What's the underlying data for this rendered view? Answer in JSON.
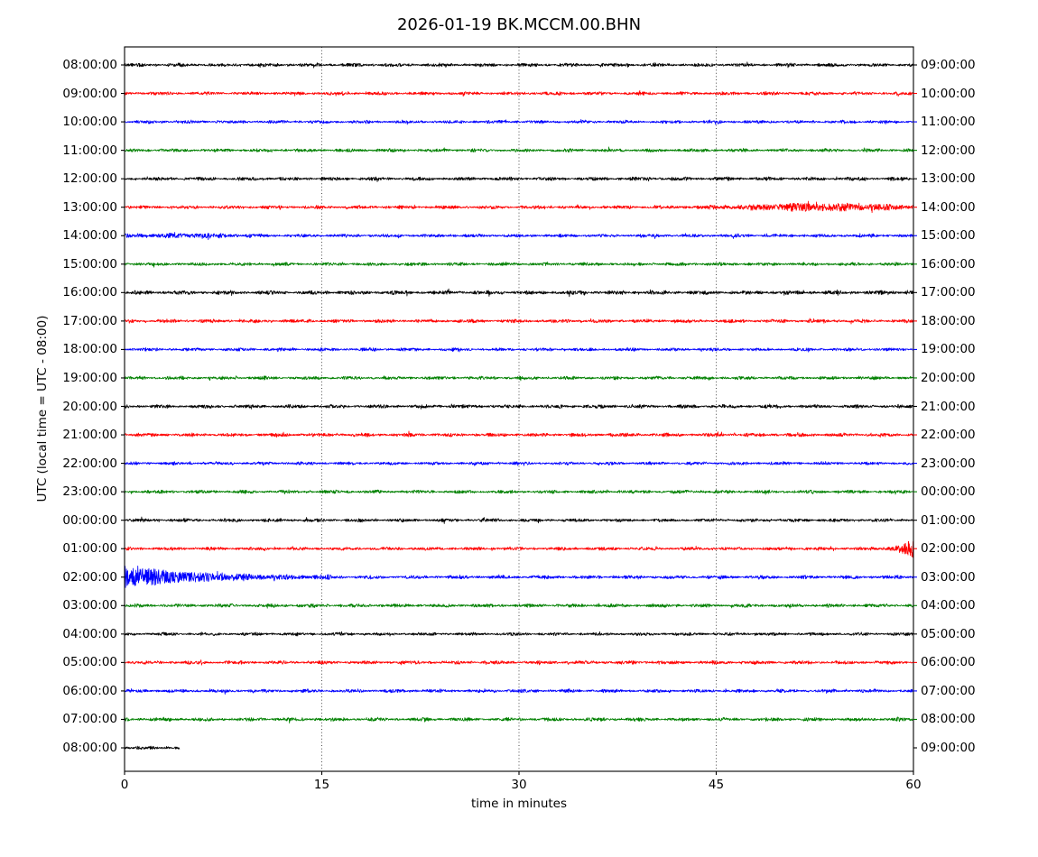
{
  "chart_data": {
    "type": "seismogram_dayplot",
    "title": "2026-01-19 BK.MCCM.00.BHN",
    "date": "2026-01-19",
    "station_id": "BK.MCCM.00.BHN",
    "xlabel": "time in minutes",
    "ylabel": "UTC (local time = UTC - 08:00)",
    "x_range": [
      0,
      60
    ],
    "x_ticks": [
      0,
      15,
      30,
      45,
      60
    ],
    "x_tick_labels": [
      "0",
      "15",
      "30",
      "45",
      "60"
    ],
    "grid": {
      "vertical_dotted_at": [
        15,
        30,
        45
      ],
      "horizontal": false
    },
    "legend": "none",
    "minutes_per_row": 60,
    "colors_cycle": [
      "#000000",
      "#ff0000",
      "#0000ff",
      "#008000"
    ],
    "frame_color": "#000000",
    "background_color": "#ffffff",
    "rows": [
      {
        "left_label": "08:00:00",
        "right_label": "09:00:00",
        "color": "#000000",
        "base_amp": 1.7,
        "span": [
          0,
          60
        ],
        "events": []
      },
      {
        "left_label": "09:00:00",
        "right_label": "10:00:00",
        "color": "#ff0000",
        "base_amp": 1.7,
        "span": [
          0,
          60
        ],
        "events": []
      },
      {
        "left_label": "10:00:00",
        "right_label": "11:00:00",
        "color": "#0000ff",
        "base_amp": 1.6,
        "span": [
          0,
          60
        ],
        "events": []
      },
      {
        "left_label": "11:00:00",
        "right_label": "12:00:00",
        "color": "#008000",
        "base_amp": 1.7,
        "span": [
          0,
          60
        ],
        "events": []
      },
      {
        "left_label": "12:00:00",
        "right_label": "13:00:00",
        "color": "#000000",
        "base_amp": 1.8,
        "span": [
          0,
          60
        ],
        "events": []
      },
      {
        "left_label": "13:00:00",
        "right_label": "14:00:00",
        "color": "#ff0000",
        "base_amp": 1.7,
        "span": [
          0,
          60
        ],
        "events": [
          {
            "type": "spindle",
            "start": 45,
            "peak": 53,
            "end": 60,
            "amp": 3.0
          }
        ]
      },
      {
        "left_label": "14:00:00",
        "right_label": "15:00:00",
        "color": "#0000ff",
        "base_amp": 1.7,
        "span": [
          0,
          60
        ],
        "events": [
          {
            "type": "spindle",
            "start": 1.5,
            "peak": 5,
            "end": 11,
            "amp": 1.2
          }
        ]
      },
      {
        "left_label": "15:00:00",
        "right_label": "16:00:00",
        "color": "#008000",
        "base_amp": 1.7,
        "span": [
          0,
          60
        ],
        "events": []
      },
      {
        "left_label": "16:00:00",
        "right_label": "17:00:00",
        "color": "#000000",
        "base_amp": 2.0,
        "span": [
          0,
          60
        ],
        "events": []
      },
      {
        "left_label": "17:00:00",
        "right_label": "18:00:00",
        "color": "#ff0000",
        "base_amp": 1.8,
        "span": [
          0,
          60
        ],
        "events": []
      },
      {
        "left_label": "18:00:00",
        "right_label": "19:00:00",
        "color": "#0000ff",
        "base_amp": 1.6,
        "span": [
          0,
          60
        ],
        "events": []
      },
      {
        "left_label": "19:00:00",
        "right_label": "20:00:00",
        "color": "#008000",
        "base_amp": 1.7,
        "span": [
          0,
          60
        ],
        "events": []
      },
      {
        "left_label": "20:00:00",
        "right_label": "21:00:00",
        "color": "#000000",
        "base_amp": 1.8,
        "span": [
          0,
          60
        ],
        "events": []
      },
      {
        "left_label": "21:00:00",
        "right_label": "22:00:00",
        "color": "#ff0000",
        "base_amp": 1.8,
        "span": [
          0,
          60
        ],
        "events": []
      },
      {
        "left_label": "22:00:00",
        "right_label": "23:00:00",
        "color": "#0000ff",
        "base_amp": 1.6,
        "span": [
          0,
          60
        ],
        "events": []
      },
      {
        "left_label": "23:00:00",
        "right_label": "00:00:00",
        "color": "#008000",
        "base_amp": 1.7,
        "span": [
          0,
          60
        ],
        "events": []
      },
      {
        "left_label": "00:00:00",
        "right_label": "01:00:00",
        "color": "#000000",
        "base_amp": 1.7,
        "span": [
          0,
          60
        ],
        "events": []
      },
      {
        "left_label": "01:00:00",
        "right_label": "02:00:00",
        "color": "#ff0000",
        "base_amp": 1.7,
        "span": [
          0,
          60
        ],
        "events": [
          {
            "type": "ramp",
            "start": 56.5,
            "end": 60,
            "amp": 9
          }
        ]
      },
      {
        "left_label": "02:00:00",
        "right_label": "03:00:00",
        "color": "#0000ff",
        "base_amp": 1.8,
        "span": [
          0,
          60
        ],
        "events": [
          {
            "type": "decay",
            "start": 0,
            "end": 16,
            "amp": 12,
            "tau": 5
          }
        ]
      },
      {
        "left_label": "03:00:00",
        "right_label": "04:00:00",
        "color": "#008000",
        "base_amp": 1.8,
        "span": [
          0,
          60
        ],
        "events": []
      },
      {
        "left_label": "04:00:00",
        "right_label": "05:00:00",
        "color": "#000000",
        "base_amp": 1.6,
        "span": [
          0,
          60
        ],
        "events": []
      },
      {
        "left_label": "05:00:00",
        "right_label": "06:00:00",
        "color": "#ff0000",
        "base_amp": 1.8,
        "span": [
          0,
          60
        ],
        "events": []
      },
      {
        "left_label": "06:00:00",
        "right_label": "07:00:00",
        "color": "#0000ff",
        "base_amp": 1.7,
        "span": [
          0,
          60
        ],
        "events": []
      },
      {
        "left_label": "07:00:00",
        "right_label": "08:00:00",
        "color": "#008000",
        "base_amp": 1.8,
        "span": [
          0,
          60
        ],
        "events": []
      },
      {
        "left_label": "08:00:00",
        "right_label": "09:00:00",
        "color": "#000000",
        "base_amp": 1.7,
        "span": [
          0,
          4.2
        ],
        "events": []
      }
    ]
  }
}
